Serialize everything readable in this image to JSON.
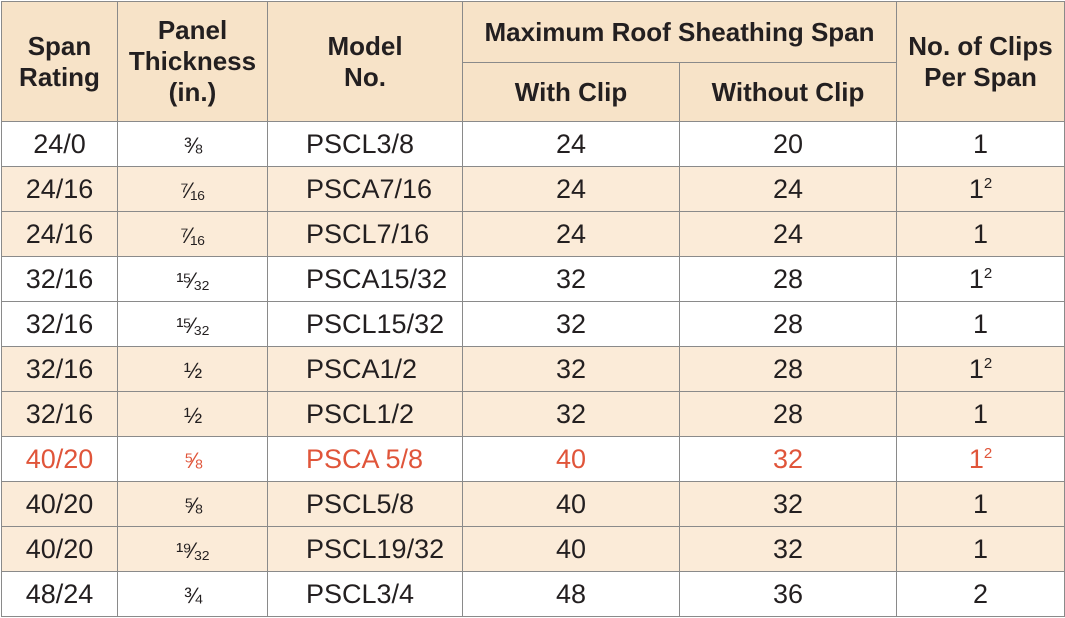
{
  "header": {
    "span_rating": "Span Rating",
    "panel_thickness_line1": "Panel",
    "panel_thickness_line2": "Thickness",
    "panel_thickness_line3": "(in.)",
    "model_line1": "Model",
    "model_line2": "No.",
    "max_span": "Maximum Roof Sheathing Span",
    "with_clip": "With Clip",
    "without_clip": "Without Clip",
    "clips_line1": "No. of Clips",
    "clips_line2": "Per Span"
  },
  "highlight_color": "#e0553a",
  "rows": [
    {
      "span": "24/0",
      "thickness": "⅜",
      "model": "PSCL3/8",
      "with": "24",
      "without": "20",
      "clips": "1",
      "sup": "",
      "shade": false,
      "highlight": false
    },
    {
      "span": "24/16",
      "thickness": "⁷⁄₁₆",
      "model": "PSCA7/16",
      "with": "24",
      "without": "24",
      "clips": "1",
      "sup": "2",
      "shade": true,
      "highlight": false
    },
    {
      "span": "24/16",
      "thickness": "⁷⁄₁₆",
      "model": "PSCL7/16",
      "with": "24",
      "without": "24",
      "clips": "1",
      "sup": "",
      "shade": true,
      "highlight": false
    },
    {
      "span": "32/16",
      "thickness": "¹⁵⁄₃₂",
      "model": "PSCA15/32",
      "with": "32",
      "without": "28",
      "clips": "1",
      "sup": "2",
      "shade": false,
      "highlight": false
    },
    {
      "span": "32/16",
      "thickness": "¹⁵⁄₃₂",
      "model": "PSCL15/32",
      "with": "32",
      "without": "28",
      "clips": "1",
      "sup": "",
      "shade": false,
      "highlight": false
    },
    {
      "span": "32/16",
      "thickness": "½",
      "model": "PSCA1/2",
      "with": "32",
      "without": "28",
      "clips": "1",
      "sup": "2",
      "shade": true,
      "highlight": false
    },
    {
      "span": "32/16",
      "thickness": "½",
      "model": "PSCL1/2",
      "with": "32",
      "without": "28",
      "clips": "1",
      "sup": "",
      "shade": true,
      "highlight": false
    },
    {
      "span": "40/20",
      "thickness": "⅝",
      "model": "PSCA 5/8",
      "with": "40",
      "without": "32",
      "clips": "1",
      "sup": "2",
      "shade": false,
      "highlight": true
    },
    {
      "span": "40/20",
      "thickness": "⅝",
      "model": "PSCL5/8",
      "with": "40",
      "without": "32",
      "clips": "1",
      "sup": "",
      "shade": true,
      "highlight": false
    },
    {
      "span": "40/20",
      "thickness": "¹⁹⁄₃₂",
      "model": "PSCL19/32",
      "with": "40",
      "without": "32",
      "clips": "1",
      "sup": "",
      "shade": true,
      "highlight": false
    },
    {
      "span": "48/24",
      "thickness": "¾",
      "model": "PSCL3/4",
      "with": "48",
      "without": "36",
      "clips": "2",
      "sup": "",
      "shade": false,
      "highlight": false
    }
  ]
}
